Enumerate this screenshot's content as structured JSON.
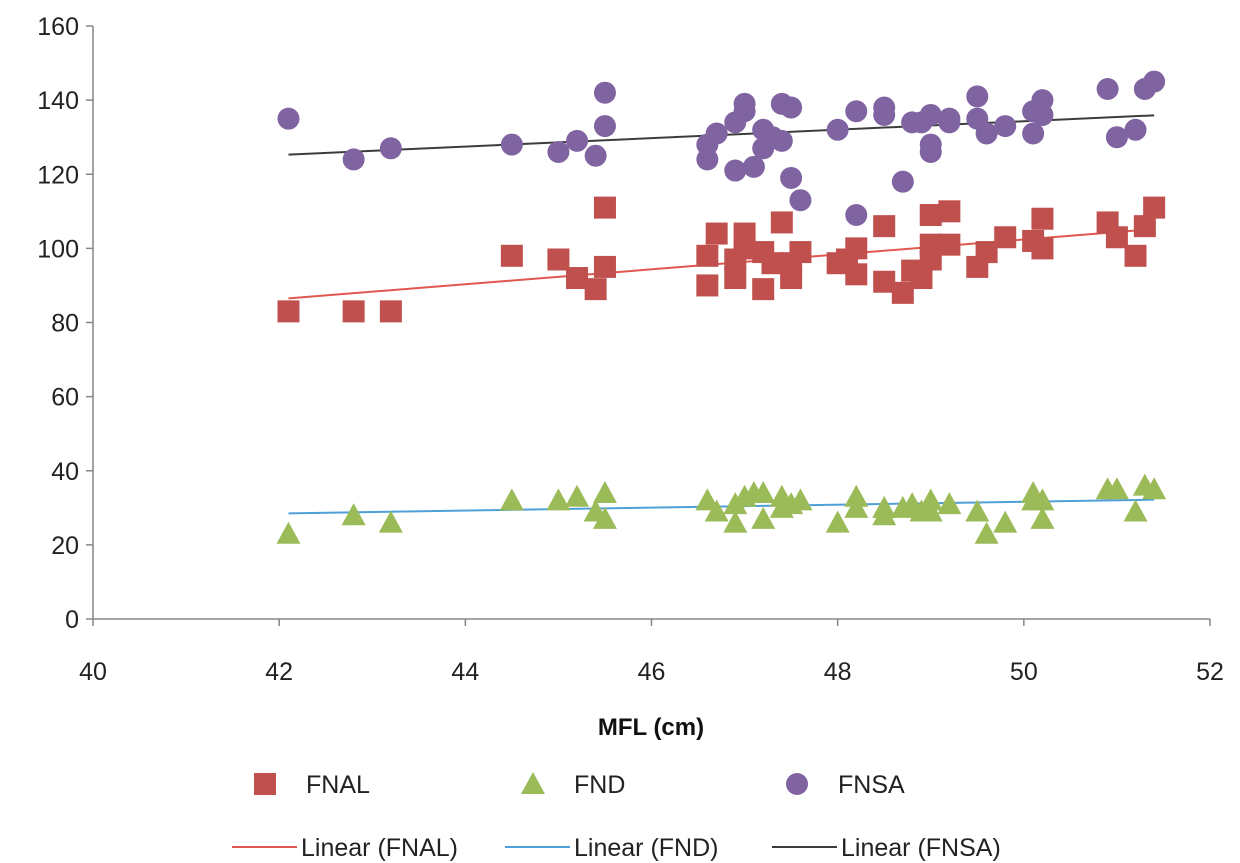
{
  "chart_data": {
    "type": "scatter",
    "title": "",
    "xlabel": "MFL (cm)",
    "ylabel": "",
    "xlim": [
      40,
      52
    ],
    "ylim": [
      0,
      160
    ],
    "x_ticks": [
      40,
      42,
      44,
      46,
      48,
      50,
      52
    ],
    "y_ticks": [
      0,
      20,
      40,
      60,
      80,
      100,
      120,
      140,
      160
    ],
    "grid": false,
    "legend_position": "bottom",
    "series": [
      {
        "name": "FNAL",
        "marker": "square",
        "color": "#c0504d",
        "points": [
          [
            42.1,
            83
          ],
          [
            42.8,
            83
          ],
          [
            43.2,
            83
          ],
          [
            44.5,
            98
          ],
          [
            45.0,
            97
          ],
          [
            45.2,
            92
          ],
          [
            45.4,
            89
          ],
          [
            45.5,
            95
          ],
          [
            45.5,
            111
          ],
          [
            46.6,
            90
          ],
          [
            46.6,
            98
          ],
          [
            46.7,
            104
          ],
          [
            46.9,
            92
          ],
          [
            46.9,
            97
          ],
          [
            47.0,
            100
          ],
          [
            47.0,
            104
          ],
          [
            47.2,
            89
          ],
          [
            47.2,
            99
          ],
          [
            47.3,
            96
          ],
          [
            47.4,
            107
          ],
          [
            47.5,
            92
          ],
          [
            47.5,
            96
          ],
          [
            47.6,
            99
          ],
          [
            48.0,
            96
          ],
          [
            48.1,
            97
          ],
          [
            48.2,
            93
          ],
          [
            48.2,
            100
          ],
          [
            48.5,
            91
          ],
          [
            48.5,
            106
          ],
          [
            48.7,
            88
          ],
          [
            48.8,
            94
          ],
          [
            48.9,
            92
          ],
          [
            49.0,
            97
          ],
          [
            49.0,
            101
          ],
          [
            49.0,
            109
          ],
          [
            49.2,
            101
          ],
          [
            49.2,
            110
          ],
          [
            49.5,
            95
          ],
          [
            49.6,
            99
          ],
          [
            49.8,
            103
          ],
          [
            50.1,
            102
          ],
          [
            50.2,
            100
          ],
          [
            50.2,
            108
          ],
          [
            50.9,
            107
          ],
          [
            51.0,
            103
          ],
          [
            51.2,
            98
          ],
          [
            51.3,
            106
          ],
          [
            51.4,
            111
          ]
        ],
        "trendline": {
          "name": "Linear (FNAL)",
          "color": "#e0574f",
          "x": [
            42.1,
            51.4
          ],
          "y": [
            86.5,
            105.2
          ]
        }
      },
      {
        "name": "FND",
        "marker": "triangle",
        "color": "#9bbb59",
        "points": [
          [
            42.1,
            23
          ],
          [
            42.8,
            28
          ],
          [
            43.2,
            26
          ],
          [
            44.5,
            32
          ],
          [
            45.0,
            32
          ],
          [
            45.2,
            33
          ],
          [
            45.4,
            29
          ],
          [
            45.5,
            27
          ],
          [
            45.5,
            34
          ],
          [
            46.6,
            32
          ],
          [
            46.7,
            29
          ],
          [
            46.9,
            26
          ],
          [
            46.9,
            31
          ],
          [
            47.0,
            33
          ],
          [
            47.1,
            34
          ],
          [
            47.2,
            27
          ],
          [
            47.2,
            34
          ],
          [
            47.4,
            30
          ],
          [
            47.4,
            33
          ],
          [
            47.5,
            31
          ],
          [
            47.6,
            32
          ],
          [
            48.0,
            26
          ],
          [
            48.2,
            30
          ],
          [
            48.2,
            33
          ],
          [
            48.5,
            28
          ],
          [
            48.5,
            30
          ],
          [
            48.7,
            30
          ],
          [
            48.8,
            31
          ],
          [
            48.9,
            29
          ],
          [
            49.0,
            29
          ],
          [
            49.0,
            32
          ],
          [
            49.2,
            31
          ],
          [
            49.5,
            29
          ],
          [
            49.6,
            23
          ],
          [
            49.8,
            26
          ],
          [
            50.1,
            32
          ],
          [
            50.1,
            34
          ],
          [
            50.2,
            27
          ],
          [
            50.2,
            32
          ],
          [
            50.9,
            35
          ],
          [
            51.0,
            35
          ],
          [
            51.2,
            29
          ],
          [
            51.3,
            36
          ],
          [
            51.4,
            35
          ]
        ],
        "trendline": {
          "name": "Linear (FND)",
          "color": "#4f9fd8",
          "x": [
            42.1,
            51.4
          ],
          "y": [
            28.5,
            32.2
          ]
        }
      },
      {
        "name": "FNSA",
        "marker": "circle",
        "color": "#8064a2",
        "points": [
          [
            42.1,
            135
          ],
          [
            42.8,
            124
          ],
          [
            43.2,
            127
          ],
          [
            44.5,
            128
          ],
          [
            45.0,
            126
          ],
          [
            45.2,
            129
          ],
          [
            45.4,
            125
          ],
          [
            45.5,
            133
          ],
          [
            45.5,
            142
          ],
          [
            46.6,
            124
          ],
          [
            46.6,
            128
          ],
          [
            46.7,
            131
          ],
          [
            46.9,
            121
          ],
          [
            46.9,
            134
          ],
          [
            47.0,
            137
          ],
          [
            47.0,
            139
          ],
          [
            47.1,
            122
          ],
          [
            47.2,
            127
          ],
          [
            47.2,
            132
          ],
          [
            47.3,
            130
          ],
          [
            47.4,
            129
          ],
          [
            47.4,
            139
          ],
          [
            47.5,
            119
          ],
          [
            47.5,
            138
          ],
          [
            47.6,
            113
          ],
          [
            48.0,
            132
          ],
          [
            48.2,
            109
          ],
          [
            48.2,
            137
          ],
          [
            48.5,
            136
          ],
          [
            48.5,
            138
          ],
          [
            48.7,
            118
          ],
          [
            48.8,
            134
          ],
          [
            48.9,
            134
          ],
          [
            49.0,
            126
          ],
          [
            49.0,
            128
          ],
          [
            49.0,
            136
          ],
          [
            49.2,
            134
          ],
          [
            49.2,
            135
          ],
          [
            49.5,
            135
          ],
          [
            49.5,
            141
          ],
          [
            49.6,
            131
          ],
          [
            49.8,
            133
          ],
          [
            50.1,
            131
          ],
          [
            50.1,
            137
          ],
          [
            50.2,
            136
          ],
          [
            50.2,
            140
          ],
          [
            50.9,
            143
          ],
          [
            51.0,
            130
          ],
          [
            51.2,
            132
          ],
          [
            51.3,
            143
          ],
          [
            51.4,
            145
          ]
        ],
        "trendline": {
          "name": "Linear (FNSA)",
          "color": "#3c3c3c",
          "x": [
            42.1,
            51.4
          ],
          "y": [
            125.3,
            135.9
          ]
        }
      }
    ]
  }
}
